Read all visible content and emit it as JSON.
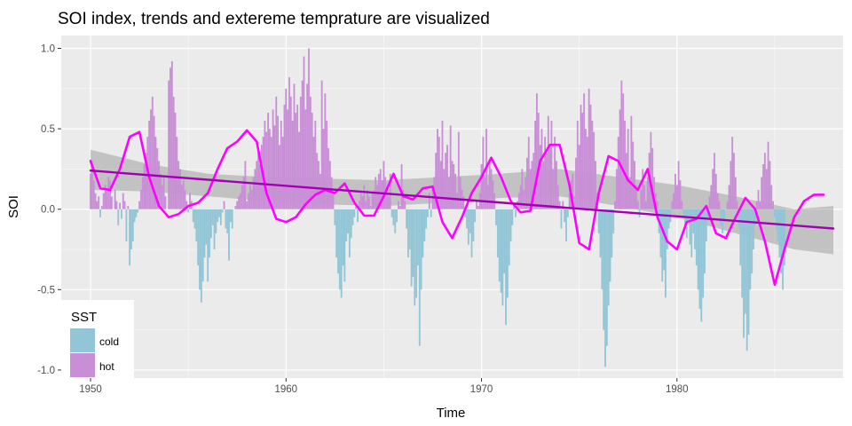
{
  "colors": {
    "panel": "#ebebeb",
    "grid_major": "#ffffff",
    "cold": "#92c5d6",
    "hot": "#c88fd6",
    "smooth_line": "#ff00ff",
    "trend_line": "#a000b0",
    "band": "#999999"
  },
  "chart_data": {
    "type": "bar",
    "title": "SOI index, trends and extereme temprature are visualized",
    "xlabel": "Time",
    "ylabel": "SOI",
    "xlim": [
      1948.5,
      1988.5
    ],
    "ylim": [
      -1.05,
      1.08
    ],
    "x_ticks": [
      1950,
      1960,
      1970,
      1980
    ],
    "x_tick_labels": [
      "1950",
      "1960",
      "1970",
      "1980"
    ],
    "y_ticks": [
      -1.0,
      -0.5,
      0.0,
      0.5,
      1.0
    ],
    "y_tick_labels": [
      "-1.0",
      "-0.5",
      "0.0",
      "0.5",
      "1.0"
    ],
    "grid": true,
    "legend": {
      "title": "SST",
      "position": "bottom-left",
      "entries": [
        "cold",
        "hot"
      ]
    },
    "bars_monthly": {
      "start": 1950.0,
      "step": 0.08333,
      "colored_by_sign": {
        "negative": "cold",
        "positive": "hot"
      },
      "values": [
        0.22,
        0.3,
        0.18,
        0.1,
        0.05,
        0.08,
        -0.05,
        0.02,
        0.1,
        0.15,
        0.12,
        0.2,
        0.18,
        0.08,
        0.0,
        0.12,
        0.05,
        -0.1,
        0.04,
        -0.06,
        0.1,
        0.05,
        -0.2,
        0.02,
        -0.35,
        -0.25,
        -0.2,
        -0.08,
        -0.05,
        -0.02,
        0.05,
        0.12,
        0.2,
        0.28,
        0.35,
        0.45,
        0.55,
        0.62,
        0.7,
        0.58,
        0.45,
        0.38,
        0.3,
        0.22,
        0.15,
        0.2,
        0.08,
        0.0,
        0.8,
        0.88,
        0.92,
        0.7,
        0.6,
        0.45,
        0.3,
        0.25,
        0.15,
        0.18,
        0.12,
        0.05,
        -0.02,
        0.1,
        0.05,
        -0.08,
        -0.12,
        -0.2,
        -0.35,
        -0.5,
        -0.58,
        -0.45,
        -0.3,
        -0.22,
        -0.45,
        -0.3,
        -0.18,
        -0.1,
        -0.25,
        -0.15,
        -0.08,
        -0.05,
        -0.1,
        -0.02,
        0.05,
        -0.12,
        -0.15,
        -0.32,
        -0.08,
        -0.12,
        0.0,
        0.02,
        0.05,
        0.08,
        0.1,
        0.15,
        0.2,
        0.3,
        0.05,
        0.1,
        0.15,
        0.12,
        0.2,
        0.25,
        0.3,
        0.35,
        0.28,
        0.4,
        0.45,
        0.55,
        0.48,
        0.6,
        0.5,
        0.45,
        0.62,
        0.52,
        0.7,
        0.58,
        0.4,
        0.55,
        0.45,
        0.65,
        0.75,
        0.62,
        0.82,
        0.7,
        0.55,
        0.78,
        0.6,
        0.65,
        0.48,
        0.7,
        0.8,
        0.95,
        0.62,
        0.78,
        1.0,
        0.7,
        0.6,
        0.45,
        0.55,
        0.35,
        0.3,
        0.22,
        0.8,
        0.5,
        0.72,
        0.55,
        0.38,
        0.3,
        0.2,
        0.12,
        -0.1,
        -0.3,
        -0.4,
        -0.5,
        -0.55,
        -0.35,
        -0.45,
        -0.2,
        -0.15,
        -0.3,
        -0.18,
        -0.1,
        -0.05,
        0.02,
        -0.08,
        0.05,
        0.1,
        0.08,
        0.15,
        0.05,
        0.12,
        0.08,
        0.02,
        0.1,
        0.12,
        0.2,
        0.15,
        0.22,
        0.25,
        0.18,
        0.3,
        0.2,
        0.12,
        0.08,
        0.22,
        -0.05,
        -0.1,
        -0.15,
        -0.08,
        0.05,
        0.02,
        0.28,
        0.12,
        0.05,
        -0.12,
        -0.3,
        -0.25,
        -0.48,
        -0.42,
        -0.6,
        -0.55,
        -0.35,
        -0.85,
        -0.5,
        -0.3,
        -0.2,
        -0.12,
        -0.05,
        0.1,
        -0.05,
        0.15,
        0.2,
        0.35,
        0.5,
        0.45,
        0.3,
        0.55,
        0.25,
        0.35,
        0.4,
        0.2,
        0.52,
        0.3,
        0.28,
        0.22,
        0.1,
        0.48,
        0.2,
        0.12,
        0.08,
        -0.05,
        -0.12,
        -0.22,
        -0.15,
        -0.3,
        -0.2,
        -0.08,
        0.05,
        0.02,
        0.1,
        0.28,
        0.45,
        0.2,
        0.5,
        0.15,
        0.3,
        0.25,
        0.18,
        0.1,
        -0.1,
        -0.3,
        -0.45,
        -0.52,
        -0.6,
        -0.4,
        -0.72,
        -0.55,
        -0.35,
        -0.2,
        -0.1,
        0.02,
        -0.05,
        0.05,
        0.1,
        0.15,
        0.25,
        0.12,
        0.2,
        0.32,
        0.45,
        0.25,
        0.3,
        0.35,
        0.55,
        0.72,
        0.6,
        0.4,
        0.5,
        0.3,
        0.45,
        0.35,
        0.58,
        0.4,
        0.55,
        0.25,
        0.45,
        0.3,
        0.15,
        0.05,
        -0.12,
        0.05,
        -0.08,
        -0.2,
        -0.05,
        0.1,
        0.18,
        0.22,
        0.08,
        0.32,
        0.55,
        0.4,
        0.65,
        0.6,
        0.72,
        0.5,
        0.45,
        0.75,
        0.65,
        0.55,
        0.48,
        0.3,
        0.1,
        -0.15,
        -0.3,
        -0.5,
        -0.75,
        -0.98,
        -0.85,
        -0.6,
        -0.45,
        -0.3,
        -0.15,
        0.05,
        0.25,
        0.45,
        0.62,
        0.8,
        0.72,
        0.55,
        0.35,
        0.5,
        0.2,
        0.58,
        0.42,
        0.3,
        0.15,
        0.05,
        -0.05,
        0.12,
        0.25,
        0.15,
        0.05,
        0.2,
        0.35,
        0.48,
        0.38,
        0.2,
        0.1,
        0.05,
        -0.15,
        -0.3,
        -0.45,
        -0.38,
        -0.55,
        -0.25,
        -0.12,
        -0.08,
        0.05,
        0.1,
        0.22,
        0.15,
        0.3,
        0.18,
        0.05,
        -0.05,
        -0.1,
        -0.18,
        -0.08,
        -0.22,
        -0.3,
        -0.15,
        -0.25,
        -0.35,
        -0.5,
        -0.62,
        -0.7,
        -0.55,
        -0.4,
        -0.2,
        -0.05,
        0.08,
        0.15,
        0.25,
        0.35,
        0.22,
        0.1,
        0.05,
        -0.1,
        -0.15,
        -0.08,
        0.0,
        0.05,
        0.15,
        0.3,
        0.45,
        0.35,
        0.2,
        0.05,
        -0.12,
        -0.35,
        -0.55,
        -0.8,
        -0.65,
        -0.88,
        -0.78,
        -0.5,
        -0.4,
        -0.25,
        -0.1,
        0.05,
        0.12,
        0.05,
        0.2,
        0.28,
        0.35,
        0.25,
        0.42,
        0.3,
        0.15,
        0.05,
        -0.05,
        -0.12,
        -0.2,
        -0.3,
        -0.4,
        -0.5,
        -0.35
      ]
    },
    "lines": [
      {
        "name": "",
        "role": "smooth",
        "color": "smooth_line",
        "x": [
          1950,
          1950.5,
          1951,
          1951.5,
          1952,
          1952.5,
          1953,
          1953.5,
          1954,
          1954.5,
          1955,
          1955.5,
          1956,
          1956.5,
          1957,
          1957.5,
          1958,
          1958.5,
          1959,
          1959.5,
          1960,
          1960.5,
          1961,
          1961.5,
          1962,
          1962.5,
          1963,
          1963.5,
          1964,
          1964.5,
          1965,
          1965.5,
          1966,
          1966.5,
          1967,
          1967.5,
          1968,
          1968.5,
          1969,
          1969.5,
          1970,
          1970.5,
          1971,
          1971.5,
          1972,
          1972.5,
          1973,
          1973.5,
          1974,
          1974.5,
          1975,
          1975.5,
          1976,
          1976.5,
          1977,
          1977.5,
          1978,
          1978.5,
          1979,
          1979.5,
          1980,
          1980.5,
          1981,
          1981.5,
          1982,
          1982.5,
          1983,
          1983.5,
          1984,
          1984.5,
          1985,
          1985.5,
          1986,
          1986.5,
          1987,
          1987.5
        ],
        "y": [
          0.3,
          0.13,
          0.12,
          0.25,
          0.45,
          0.48,
          0.2,
          0.02,
          -0.05,
          -0.03,
          0.02,
          0.04,
          0.1,
          0.25,
          0.38,
          0.42,
          0.49,
          0.42,
          0.1,
          -0.06,
          -0.08,
          -0.05,
          0.03,
          0.09,
          0.12,
          0.1,
          0.16,
          0.04,
          -0.04,
          -0.04,
          0.08,
          0.22,
          0.08,
          0.06,
          0.13,
          0.14,
          -0.08,
          -0.18,
          -0.05,
          0.1,
          0.2,
          0.32,
          0.2,
          0.05,
          -0.02,
          -0.01,
          0.3,
          0.4,
          0.4,
          0.15,
          -0.21,
          -0.25,
          0.1,
          0.33,
          0.3,
          0.18,
          0.12,
          0.25,
          -0.05,
          -0.2,
          -0.25,
          -0.08,
          -0.06,
          0.02,
          -0.15,
          -0.18,
          -0.05,
          0.07,
          0.0,
          -0.2,
          -0.47,
          -0.25,
          -0.05,
          0.05,
          0.09,
          0.09
        ]
      },
      {
        "name": "",
        "role": "trend",
        "color": "trend_line",
        "x": [
          1950,
          1988
        ],
        "y": [
          0.24,
          -0.12
        ]
      }
    ],
    "confidence_band": {
      "x": [
        1950,
        1953,
        1956,
        1959,
        1962,
        1965,
        1968,
        1971,
        1974,
        1977,
        1980,
        1983,
        1986,
        1988
      ],
      "lower": [
        0.12,
        0.11,
        0.08,
        0.05,
        0.03,
        0.02,
        0.04,
        0.07,
        0.08,
        0.02,
        -0.05,
        -0.15,
        -0.25,
        -0.28
      ],
      "upper": [
        0.37,
        0.28,
        0.22,
        0.2,
        0.19,
        0.18,
        0.2,
        0.22,
        0.25,
        0.2,
        0.15,
        0.08,
        0.0,
        0.02
      ]
    }
  }
}
